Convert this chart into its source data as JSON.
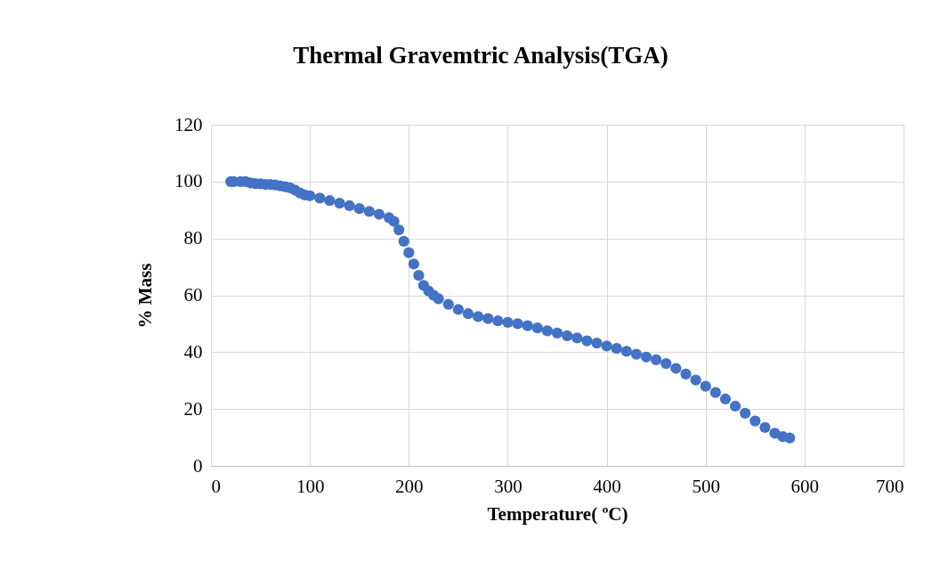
{
  "chart_data": {
    "type": "scatter",
    "title": "Thermal Gravemtric Analysis(TGA)",
    "xlabel": "Temperature( ºC)",
    "ylabel": "% Mass",
    "xlim": [
      0,
      700
    ],
    "xticks": [
      0,
      100,
      200,
      300,
      400,
      500,
      600,
      700
    ],
    "ylim": [
      0,
      120
    ],
    "yticks": [
      0,
      20,
      40,
      60,
      80,
      100,
      120
    ],
    "grid": true,
    "marker": "circle",
    "series": [
      {
        "color": "#4472c4",
        "x": [
          20,
          23,
          30,
          35,
          40,
          45,
          50,
          55,
          60,
          65,
          70,
          75,
          80,
          85,
          90,
          95,
          100,
          110,
          120,
          130,
          140,
          150,
          160,
          170,
          180,
          185,
          190,
          195,
          200,
          205,
          210,
          215,
          220,
          225,
          230,
          240,
          250,
          260,
          270,
          280,
          290,
          300,
          310,
          320,
          330,
          340,
          350,
          360,
          370,
          380,
          390,
          400,
          410,
          420,
          430,
          440,
          450,
          460,
          470,
          480,
          490,
          500,
          510,
          520,
          530,
          540,
          550,
          560,
          570,
          578,
          585
        ],
        "values": [
          100,
          100,
          100,
          100,
          99.5,
          99.3,
          99.2,
          99,
          99,
          98.8,
          98.5,
          98.2,
          97.8,
          97,
          96,
          95.3,
          95,
          94.2,
          93.3,
          92.4,
          91.5,
          90.5,
          89.5,
          88.5,
          87.3,
          86,
          83,
          79,
          75,
          71,
          67,
          63.5,
          61.5,
          60,
          58.8,
          56.8,
          55,
          53.5,
          52.5,
          51.8,
          51,
          50.5,
          50,
          49.3,
          48.5,
          47.5,
          46.7,
          45.8,
          45,
          44,
          43.2,
          42.2,
          41.3,
          40.3,
          39.3,
          38.3,
          37.3,
          36,
          34.3,
          32.3,
          30.2,
          28,
          25.8,
          23.5,
          21,
          18.5,
          15.8,
          13.5,
          11.5,
          10.3,
          9.8
        ]
      }
    ]
  }
}
